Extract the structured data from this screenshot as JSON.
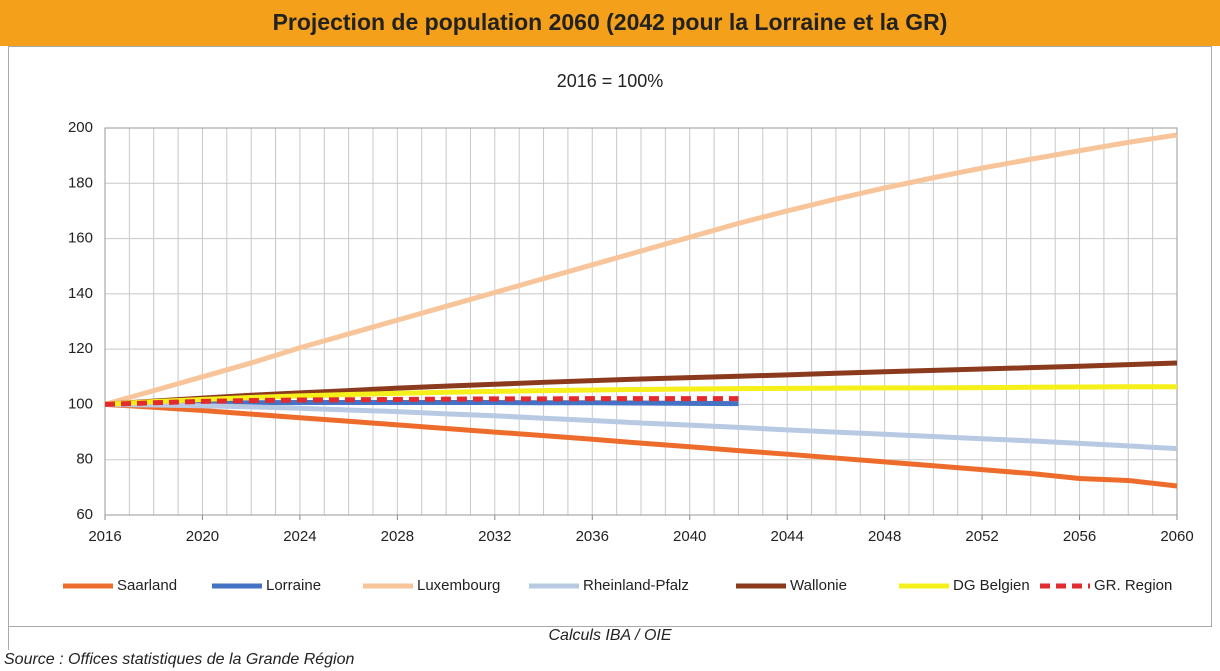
{
  "chart_data": {
    "type": "line",
    "title": "Projection de population 2060 (2042 pour la Lorraine et la GR)",
    "subtitle": "2016 = 100%",
    "annotation": "Calculs IBA / OIE",
    "source": "Source : Offices statistiques de la Grande Région",
    "x": [
      2016,
      2018,
      2020,
      2022,
      2024,
      2026,
      2028,
      2030,
      2032,
      2034,
      2036,
      2038,
      2040,
      2042,
      2044,
      2046,
      2048,
      2050,
      2052,
      2054,
      2056,
      2058,
      2060
    ],
    "xlim": [
      2016,
      2060
    ],
    "xticks": [
      2016,
      2020,
      2024,
      2028,
      2032,
      2036,
      2040,
      2044,
      2048,
      2052,
      2056,
      2060
    ],
    "x_grid_step": 1,
    "ylim": [
      60,
      200
    ],
    "yticks": [
      60,
      80,
      100,
      120,
      140,
      160,
      180,
      200
    ],
    "grid": true,
    "legend": "bottom",
    "series": [
      {
        "name": "Saarland",
        "color": "#ee6c2b",
        "values": [
          100,
          99,
          97.8,
          96.5,
          95.2,
          93.9,
          92.6,
          91.3,
          90,
          88.7,
          87.4,
          86,
          84.7,
          83.3,
          82,
          80.6,
          79.2,
          77.8,
          76.4,
          75,
          73.2,
          72.5,
          70.5
        ]
      },
      {
        "name": "Lorraine",
        "color": "#4472c4",
        "values": [
          100,
          100.3,
          100.5,
          100.6,
          100.7,
          100.7,
          100.7,
          100.7,
          100.7,
          100.6,
          100.6,
          100.5,
          100.4,
          100.3,
          null,
          null,
          null,
          null,
          null,
          null,
          null,
          null,
          null
        ]
      },
      {
        "name": "Luxembourg",
        "color": "#f8c49a",
        "values": [
          100,
          105,
          110,
          115,
          120.5,
          125.5,
          130.5,
          135.5,
          140.5,
          145.5,
          150.5,
          155.5,
          160.5,
          165.5,
          170,
          174.3,
          178.3,
          182,
          185.5,
          188.7,
          191.8,
          194.8,
          197.5
        ]
      },
      {
        "name": "Rheinland-Pfalz",
        "color": "#b8c9e4",
        "values": [
          100,
          99.8,
          99.5,
          99.1,
          98.6,
          98,
          97.4,
          96.6,
          95.9,
          95,
          94.2,
          93.3,
          92.5,
          91.7,
          90.8,
          90,
          89.2,
          88.4,
          87.6,
          86.8,
          85.9,
          85,
          84
        ]
      },
      {
        "name": "Wallonie",
        "color": "#8b3a1e",
        "values": [
          100,
          101.2,
          102.3,
          103.3,
          104.2,
          105,
          105.9,
          106.6,
          107.3,
          108,
          108.6,
          109.2,
          109.7,
          110.2,
          110.7,
          111.3,
          111.8,
          112.3,
          112.8,
          113.3,
          113.8,
          114.4,
          115
        ]
      },
      {
        "name": "DG Belgien",
        "color": "#f5ef1a",
        "values": [
          100,
          101,
          101.8,
          102.5,
          103.1,
          103.6,
          104,
          104.4,
          104.7,
          105,
          105.2,
          105.4,
          105.6,
          105.7,
          105.8,
          105.9,
          106,
          106,
          106.1,
          106.2,
          106.3,
          106.4,
          106.4
        ]
      },
      {
        "name": "GR. Region",
        "color": "#e32a2c",
        "dash": true,
        "values": [
          100,
          100.6,
          101.1,
          101.4,
          101.6,
          101.7,
          101.8,
          101.9,
          102,
          102,
          102.1,
          102.1,
          102.1,
          102.1,
          null,
          null,
          null,
          null,
          null,
          null,
          null,
          null,
          null
        ]
      }
    ]
  }
}
